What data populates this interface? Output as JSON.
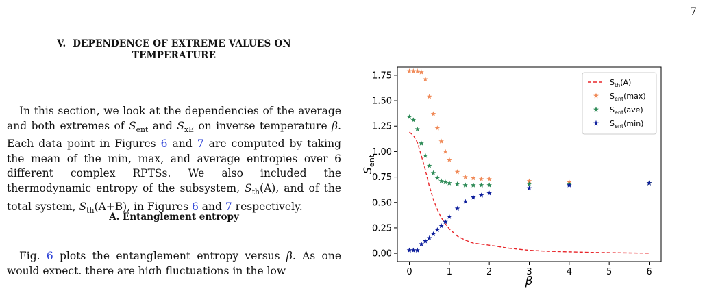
{
  "page_number": "7",
  "section": {
    "number": "V.",
    "title_line1": "DEPENDENCE OF EXTREME VALUES ON",
    "title_line2": "TEMPERATURE"
  },
  "paragraph1": {
    "t1": "In this section, we look at the dependencies of the average and both extremes of ",
    "s_ent_sym": "S",
    "s_ent_sub": "ent",
    "t2": " and ",
    "s_xe_sym": "S",
    "s_xe_sub": "xE",
    "t3": " on inverse temperature ",
    "beta": "β",
    "t4": ". Each data point in Figures ",
    "fig6a": "6",
    "t5": " and ",
    "fig7a": "7",
    "t6": " are computed by taking the mean of the min, max, and average entropies over 6 different complex RPTSs. We also included the thermodynamic entropy of the subsystem, ",
    "sth_a": "S",
    "sth_a_sub": "th",
    "sth_a_arg": "(A)",
    "t7": ", and of the total system, ",
    "sth_ab": "S",
    "sth_ab_sub": "th",
    "sth_ab_arg": "(A+B)",
    "t8": ", in Figures ",
    "fig6b": "6",
    "t9": " and ",
    "fig7b": "7",
    "t10": " respectively."
  },
  "subsection": {
    "title": "A.   Entanglement entropy"
  },
  "paragraph2": {
    "t1": "Fig. ",
    "fig6": "6",
    "t2": " plots the entanglement entropy versus ",
    "beta": "β",
    "t3": ". As one would expect, there are high fluctuations in the low"
  },
  "chart_data": {
    "type": "scatter",
    "xlabel": "β",
    "ylabel_sym": "S",
    "ylabel_sub": "ent",
    "xlim": [
      -0.3,
      6.3
    ],
    "ylim": [
      -0.08,
      1.83
    ],
    "xticks": [
      0,
      1,
      2,
      3,
      4,
      5,
      6
    ],
    "yticks": [
      0.0,
      0.25,
      0.5,
      0.75,
      1.0,
      1.25,
      1.5,
      1.75
    ],
    "ytick_labels": [
      "0.00",
      "0.25",
      "0.50",
      "0.75",
      "1.00",
      "1.25",
      "1.50",
      "1.75"
    ],
    "grid": false,
    "legend_position": "top-right",
    "series": [
      {
        "name": "Sth(A)",
        "name_main": "S",
        "name_sub": "th",
        "name_tail": "(A)",
        "kind": "line",
        "style": "dashed",
        "color": "#e8262a",
        "x": [
          0,
          0.1,
          0.2,
          0.3,
          0.4,
          0.5,
          0.6,
          0.7,
          0.8,
          0.9,
          1.0,
          1.2,
          1.4,
          1.6,
          1.8,
          2.0,
          2.5,
          3.0,
          3.5,
          4.0,
          4.5,
          5.0,
          5.5,
          6.0
        ],
        "y": [
          1.19,
          1.16,
          1.09,
          0.96,
          0.82,
          0.66,
          0.53,
          0.43,
          0.35,
          0.29,
          0.24,
          0.17,
          0.13,
          0.1,
          0.09,
          0.08,
          0.05,
          0.03,
          0.02,
          0.015,
          0.01,
          0.007,
          0.004,
          0.002
        ]
      },
      {
        "name": "Sent(max)",
        "name_main": "S",
        "name_sub": "ent",
        "name_tail": "(max)",
        "kind": "scatter",
        "marker": "star",
        "color": "#f08a58",
        "x": [
          0.0,
          0.1,
          0.2,
          0.3,
          0.4,
          0.5,
          0.6,
          0.7,
          0.8,
          0.9,
          1.0,
          1.2,
          1.4,
          1.6,
          1.8,
          2.0,
          3.0,
          4.0,
          6.0
        ],
        "y": [
          1.79,
          1.79,
          1.79,
          1.78,
          1.71,
          1.54,
          1.37,
          1.23,
          1.1,
          1.0,
          0.92,
          0.8,
          0.75,
          0.74,
          0.73,
          0.73,
          0.71,
          0.7,
          0.69
        ]
      },
      {
        "name": "Sent(ave)",
        "name_main": "S",
        "name_sub": "ent",
        "name_tail": "(ave)",
        "kind": "scatter",
        "marker": "star",
        "color": "#2e8b57",
        "x": [
          0.0,
          0.1,
          0.2,
          0.3,
          0.4,
          0.5,
          0.6,
          0.7,
          0.8,
          0.9,
          1.0,
          1.2,
          1.4,
          1.6,
          1.8,
          2.0,
          3.0,
          4.0,
          6.0
        ],
        "y": [
          1.34,
          1.31,
          1.22,
          1.08,
          0.96,
          0.86,
          0.79,
          0.74,
          0.71,
          0.7,
          0.69,
          0.68,
          0.67,
          0.67,
          0.67,
          0.67,
          0.68,
          0.68,
          0.69
        ]
      },
      {
        "name": "Sent(min)",
        "name_main": "S",
        "name_sub": "ent",
        "name_tail": "(min)",
        "kind": "scatter",
        "marker": "star",
        "color": "#0d1e9c",
        "x": [
          0.0,
          0.1,
          0.2,
          0.3,
          0.4,
          0.5,
          0.6,
          0.7,
          0.8,
          0.9,
          1.0,
          1.2,
          1.4,
          1.6,
          1.8,
          2.0,
          3.0,
          4.0,
          6.0
        ],
        "y": [
          0.03,
          0.03,
          0.03,
          0.09,
          0.12,
          0.15,
          0.19,
          0.23,
          0.27,
          0.31,
          0.36,
          0.44,
          0.51,
          0.55,
          0.57,
          0.59,
          0.64,
          0.67,
          0.69
        ]
      }
    ]
  }
}
